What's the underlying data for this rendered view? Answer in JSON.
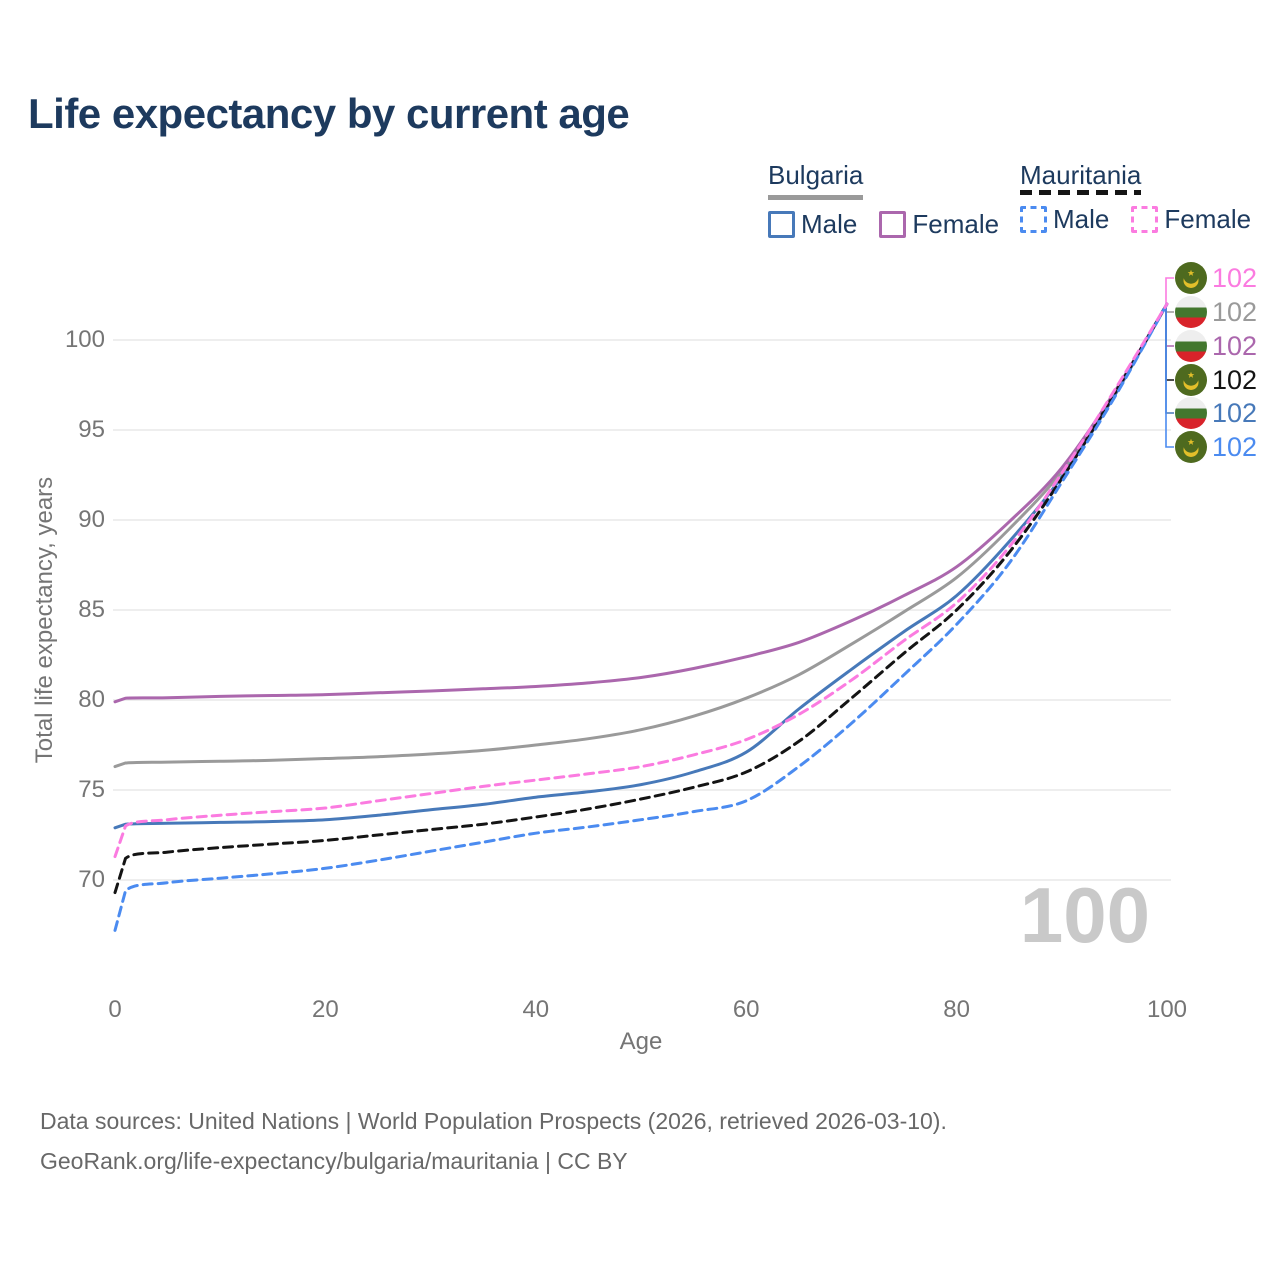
{
  "title": "Life expectancy by current age",
  "legend": {
    "groups": [
      {
        "label": "Bulgaria",
        "line_style": "solid",
        "underline_color": "#9a9a9a",
        "items": [
          {
            "label": "Male",
            "color": "#4779b9"
          },
          {
            "label": "Female",
            "color": "#ab67ad"
          }
        ]
      },
      {
        "label": "Mauritania",
        "line_style": "dashed",
        "underline_color": "#151515",
        "items": [
          {
            "label": "Male",
            "color": "#4b8bf0"
          },
          {
            "label": "Female",
            "color": "#fb7be0"
          }
        ]
      }
    ]
  },
  "axes": {
    "x": {
      "label": "Age",
      "ticks": [
        "0",
        "20",
        "40",
        "60",
        "80",
        "100"
      ]
    },
    "y": {
      "label": "Total life expectancy, years",
      "ticks": [
        "100",
        "95",
        "90",
        "85",
        "80",
        "75",
        "70"
      ]
    }
  },
  "watermark": "100",
  "footer": {
    "line1": "Data sources: United Nations | World Population Prospects (2026, retrieved 2026-03-10).",
    "line2": "GeoRank.org/life-expectancy/bulgaria/mauritania | CC BY"
  },
  "right_labels": [
    {
      "series": "Mauritania Female",
      "value": "102",
      "color": "#fb7be0",
      "flag": "mauritania"
    },
    {
      "series": "Bulgaria",
      "value": "102",
      "color": "#9a9a9a",
      "flag": "bulgaria"
    },
    {
      "series": "Bulgaria Female",
      "value": "102",
      "color": "#ab67ad",
      "flag": "bulgaria"
    },
    {
      "series": "Mauritania",
      "value": "102",
      "color": "#141414",
      "flag": "mauritania"
    },
    {
      "series": "Bulgaria Male",
      "value": "102",
      "color": "#4779b9",
      "flag": "bulgaria"
    },
    {
      "series": "Mauritania Male",
      "value": "102",
      "color": "#4b8bf0",
      "flag": "mauritania"
    }
  ],
  "chart_data": {
    "type": "line",
    "title": "Life expectancy by current age",
    "xlabel": "Age",
    "ylabel": "Total life expectancy, years",
    "x": [
      0,
      1,
      5,
      10,
      15,
      20,
      25,
      30,
      35,
      40,
      45,
      50,
      55,
      60,
      65,
      70,
      75,
      80,
      85,
      90,
      95,
      100
    ],
    "xlim": [
      0,
      100
    ],
    "ylim": [
      66.5,
      103
    ],
    "xticks": [
      0,
      20,
      40,
      60,
      80,
      100
    ],
    "yticks": [
      100,
      95,
      90,
      85,
      80,
      75,
      70
    ],
    "grid": true,
    "legend_position": "top-right",
    "series": [
      {
        "name": "Bulgaria",
        "country": "Bulgaria",
        "sex": "both",
        "color": "#9a9a9a",
        "dash": "solid",
        "values": [
          76.3,
          76.5,
          76.55,
          76.6,
          76.65,
          76.75,
          76.85,
          77.0,
          77.2,
          77.5,
          77.85,
          78.35,
          79.1,
          80.1,
          81.4,
          83.1,
          84.9,
          86.8,
          89.5,
          92.7,
          97.0,
          102
        ]
      },
      {
        "name": "Bulgaria Female",
        "country": "Bulgaria",
        "sex": "female",
        "color": "#ab67ad",
        "dash": "solid",
        "values": [
          79.9,
          80.1,
          80.12,
          80.2,
          80.25,
          80.3,
          80.4,
          80.5,
          80.62,
          80.75,
          80.95,
          81.25,
          81.75,
          82.4,
          83.2,
          84.4,
          85.8,
          87.4,
          89.9,
          92.9,
          97.1,
          102
        ]
      },
      {
        "name": "Bulgaria Male",
        "country": "Bulgaria",
        "sex": "male",
        "color": "#4779b9",
        "dash": "solid",
        "values": [
          72.9,
          73.1,
          73.15,
          73.2,
          73.25,
          73.35,
          73.6,
          73.9,
          74.2,
          74.6,
          74.9,
          75.3,
          76.0,
          77.1,
          79.5,
          81.7,
          83.8,
          85.8,
          88.8,
          92.4,
          96.9,
          102
        ]
      },
      {
        "name": "Mauritania",
        "country": "Mauritania",
        "sex": "both",
        "color": "#141414",
        "dash": "dashed",
        "values": [
          69.3,
          71.2,
          71.55,
          71.8,
          72.0,
          72.2,
          72.5,
          72.8,
          73.1,
          73.5,
          73.95,
          74.5,
          75.15,
          76.0,
          77.7,
          80.1,
          82.6,
          85.0,
          88.2,
          92.3,
          97.0,
          102
        ]
      },
      {
        "name": "Mauritania Male",
        "country": "Mauritania",
        "sex": "male",
        "color": "#4b8bf0",
        "dash": "dashed",
        "values": [
          67.2,
          69.4,
          69.85,
          70.1,
          70.35,
          70.65,
          71.1,
          71.6,
          72.1,
          72.6,
          72.95,
          73.35,
          73.8,
          74.4,
          76.3,
          78.7,
          81.4,
          84.2,
          87.6,
          92.1,
          96.8,
          102
        ]
      },
      {
        "name": "Mauritania Female",
        "country": "Mauritania",
        "sex": "female",
        "color": "#fb7be0",
        "dash": "dashed",
        "values": [
          71.3,
          73.0,
          73.35,
          73.6,
          73.8,
          74.0,
          74.4,
          74.8,
          75.2,
          75.55,
          75.9,
          76.3,
          76.95,
          77.8,
          79.2,
          81.1,
          83.3,
          85.4,
          88.5,
          92.6,
          97.2,
          102
        ]
      }
    ],
    "end_value_all_series": 102,
    "annotations": [
      "102 at age 100 for all six series",
      "big gray 100 age counter watermark bottom-right"
    ]
  },
  "colors": {
    "title_text": "#1d3a5e",
    "axis_text": "#757575",
    "gridline": "#e9e9e9",
    "watermark": "#c9c9c9",
    "footer_text": "#686868"
  }
}
